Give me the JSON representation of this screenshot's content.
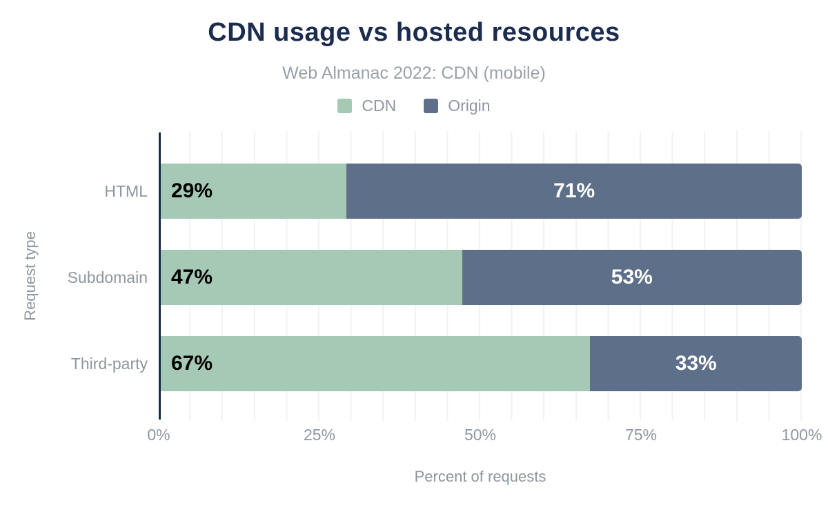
{
  "header": {
    "title": "CDN usage vs hosted resources",
    "subtitle": "Web Almanac 2022: CDN (mobile)"
  },
  "legend": {
    "items": [
      {
        "label": "CDN",
        "color": "#a5c9b5"
      },
      {
        "label": "Origin",
        "color": "#5e7089"
      }
    ]
  },
  "colors": {
    "cdn": "#a5c9b5",
    "origin": "#5e7089",
    "title_navy": "#1b2c4e",
    "axis_line": "#152a4a",
    "label_gray": "#8f969e",
    "gridline": "#f1f2f3",
    "bar_label_on_cdn": "#000000",
    "bar_label_on_origin": "#ffffff"
  },
  "rows": [
    {
      "category": "HTML",
      "cdn_pct": "29%",
      "origin_pct": "71%"
    },
    {
      "category": "Subdomain",
      "cdn_pct": "47%",
      "origin_pct": "53%"
    },
    {
      "category": "Third-party",
      "cdn_pct": "67%",
      "origin_pct": "33%"
    }
  ],
  "chart_data": {
    "type": "bar",
    "variant": "horizontal-stacked",
    "title": "CDN usage vs hosted resources",
    "subtitle": "Web Almanac 2022: CDN (mobile)",
    "categories": [
      "HTML",
      "Subdomain",
      "Third-party"
    ],
    "series": [
      {
        "name": "CDN",
        "values": [
          29,
          47,
          67
        ],
        "color": "#a5c9b5"
      },
      {
        "name": "Origin",
        "values": [
          71,
          53,
          33
        ],
        "color": "#5e7089"
      }
    ],
    "xlabel": "Percent of requests",
    "ylabel": "Request type",
    "xlim": [
      0,
      100
    ],
    "x_ticks": [
      "0%",
      "25%",
      "50%",
      "75%",
      "100%"
    ],
    "grid": "vertical gridlines every 5%",
    "legend_position": "top-center"
  }
}
